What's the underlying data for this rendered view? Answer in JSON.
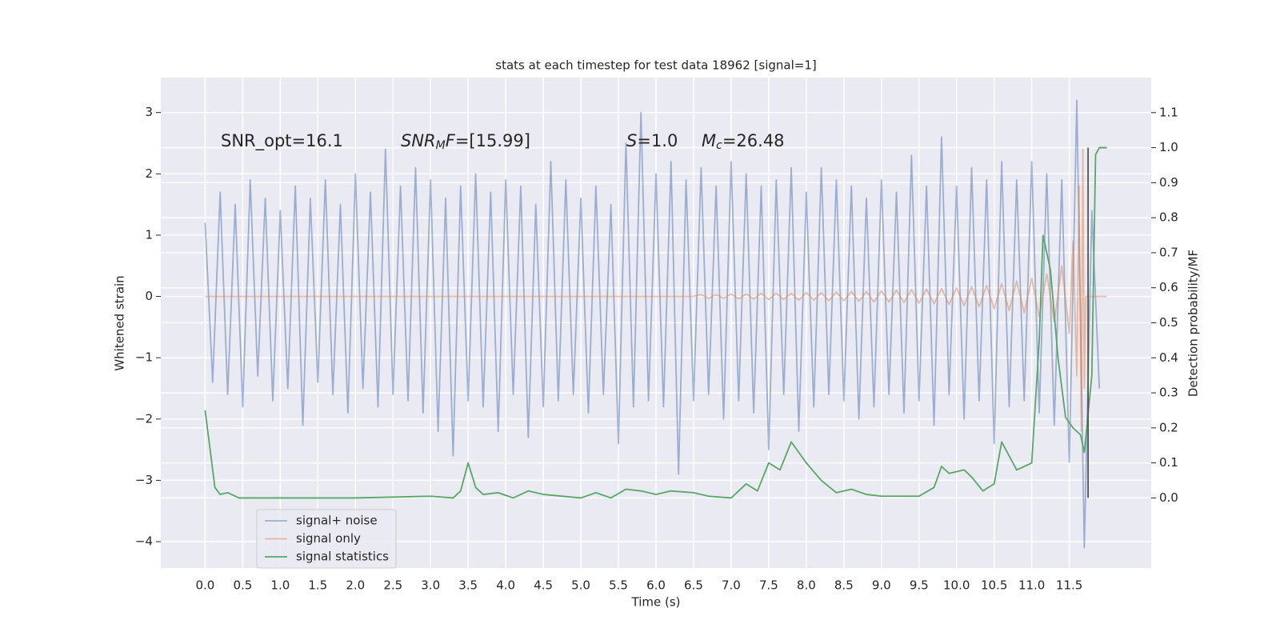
{
  "chart_data": {
    "type": "line",
    "title": "stats at each timestep for test data 18962 [signal=1]",
    "xlabel": "Time (s)",
    "ylabel": "Whitened strain",
    "y2label": "Detection probability/MF",
    "xlim": [
      -0.59,
      12.59
    ],
    "ylim": [
      -4.43,
      3.57
    ],
    "y2lim": [
      -0.2,
      1.2
    ],
    "grid": true,
    "legend": "lower left",
    "xticks": [
      {
        "value": 0,
        "label": "0.0"
      },
      0.5,
      {
        "value": 1,
        "label": "1.0"
      },
      1.5,
      {
        "value": 2,
        "label": "2.0"
      },
      2.5,
      {
        "value": 3,
        "label": "3.0"
      },
      3.5,
      {
        "value": 4,
        "label": "4.0"
      },
      4.5,
      {
        "value": 5,
        "label": "5.0"
      },
      5.5,
      {
        "value": 6,
        "label": "6.0"
      },
      6.5,
      {
        "value": 7,
        "label": "7.0"
      },
      7.5,
      {
        "value": 8,
        "label": "8.0"
      },
      8.5,
      {
        "value": 9,
        "label": "9.0"
      },
      9.5,
      {
        "value": 10,
        "label": "10.0"
      },
      10.5,
      {
        "value": 11,
        "label": "11.0"
      },
      11.5
    ],
    "yticks": [
      {
        "value": -4,
        "label": "−4"
      },
      {
        "value": -3,
        "label": "−3"
      },
      {
        "value": -2,
        "label": "−2"
      },
      {
        "value": -1,
        "label": "−1"
      },
      0,
      1,
      2,
      3
    ],
    "y2ticks": [
      {
        "value": 0,
        "label": "0.0"
      },
      0.1,
      0.2,
      0.3,
      0.4,
      0.5,
      0.6,
      0.7,
      0.8,
      0.9,
      {
        "value": 1,
        "label": "1.0"
      },
      1.1
    ],
    "annotations": [
      [
        {
          "text": "SNR_opt=16.1",
          "style": "normal"
        }
      ],
      [
        {
          "text": "SNR",
          "style": "italic"
        },
        {
          "text": "M",
          "style": "italic-sub"
        },
        {
          "text": "F",
          "style": "italic"
        },
        {
          "text": "=[15.99]",
          "style": "normal"
        }
      ],
      [
        {
          "text": "S",
          "style": "italic"
        },
        {
          "text": "=1.0",
          "style": "normal"
        }
      ],
      [
        {
          "text": "M",
          "style": "italic"
        },
        {
          "text": "c",
          "style": "italic-sub"
        },
        {
          "text": "=26.48",
          "style": "normal"
        }
      ]
    ],
    "series": [
      {
        "name": "signal+ noise",
        "color": "#4c72b0",
        "opacity": 0.5,
        "x": [
          0.0,
          0.1,
          0.2,
          0.3,
          0.4,
          0.5,
          0.6,
          0.7,
          0.8,
          0.9,
          1.0,
          1.1,
          1.2,
          1.3,
          1.4,
          1.5,
          1.6,
          1.7,
          1.8,
          1.9,
          2.0,
          2.1,
          2.2,
          2.3,
          2.4,
          2.5,
          2.6,
          2.7,
          2.8,
          2.9,
          3.0,
          3.1,
          3.2,
          3.3,
          3.4,
          3.5,
          3.6,
          3.7,
          3.8,
          3.9,
          4.0,
          4.1,
          4.2,
          4.3,
          4.4,
          4.5,
          4.6,
          4.7,
          4.8,
          4.9,
          5.0,
          5.1,
          5.2,
          5.3,
          5.4,
          5.5,
          5.6,
          5.7,
          5.8,
          5.9,
          6.0,
          6.1,
          6.2,
          6.3,
          6.4,
          6.5,
          6.6,
          6.7,
          6.8,
          6.9,
          7.0,
          7.1,
          7.2,
          7.3,
          7.4,
          7.5,
          7.6,
          7.7,
          7.8,
          7.9,
          8.0,
          8.1,
          8.2,
          8.3,
          8.4,
          8.5,
          8.6,
          8.7,
          8.8,
          8.9,
          9.0,
          9.1,
          9.2,
          9.3,
          9.4,
          9.5,
          9.6,
          9.7,
          9.8,
          9.9,
          10.0,
          10.1,
          10.2,
          10.3,
          10.4,
          10.5,
          10.6,
          10.7,
          10.8,
          10.9,
          11.0,
          11.1,
          11.2,
          11.3,
          11.4,
          11.5,
          11.6,
          11.7,
          11.8,
          11.9
        ],
        "values": [
          1.2,
          -1.4,
          1.7,
          -1.6,
          1.5,
          -1.8,
          1.9,
          -1.3,
          1.6,
          -1.7,
          1.4,
          -1.5,
          1.8,
          -2.1,
          1.6,
          -1.4,
          1.9,
          -1.6,
          1.5,
          -1.9,
          2.0,
          -1.5,
          1.7,
          -1.8,
          2.4,
          -1.6,
          1.8,
          -1.7,
          2.1,
          -1.9,
          1.9,
          -2.2,
          1.6,
          -2.6,
          1.8,
          -1.7,
          2.0,
          -1.8,
          1.7,
          -2.2,
          1.9,
          -1.6,
          1.8,
          -2.3,
          1.5,
          -1.8,
          2.2,
          -1.7,
          1.9,
          -1.6,
          1.6,
          -1.9,
          1.8,
          -1.6,
          1.5,
          -2.4,
          2.5,
          -1.8,
          3.0,
          -1.7,
          2.0,
          -1.8,
          2.2,
          -2.9,
          1.9,
          -1.7,
          2.1,
          -1.6,
          1.8,
          -2.0,
          2.2,
          -1.7,
          2.0,
          -1.9,
          1.8,
          -2.5,
          1.9,
          -1.6,
          2.1,
          -2.2,
          1.7,
          -1.8,
          2.1,
          -1.6,
          1.9,
          -1.7,
          1.8,
          -2.0,
          1.6,
          -1.8,
          1.9,
          -1.6,
          1.7,
          -1.9,
          2.3,
          -1.7,
          1.8,
          -2.1,
          2.6,
          -1.6,
          1.8,
          -2.0,
          2.1,
          -1.7,
          1.9,
          -2.4,
          2.2,
          -1.8,
          1.9,
          -1.7,
          2.2,
          -1.9,
          2.0,
          -2.1,
          1.9,
          -2.7,
          3.2,
          -4.1,
          1.4,
          -1.5
        ]
      },
      {
        "name": "signal only",
        "color": "#dd8452",
        "opacity": 0.5,
        "x": [
          0.0,
          6.5,
          6.6,
          6.7,
          6.8,
          6.9,
          7.0,
          7.1,
          7.2,
          7.3,
          7.4,
          7.5,
          7.6,
          7.7,
          7.8,
          7.9,
          8.0,
          8.1,
          8.2,
          8.3,
          8.4,
          8.5,
          8.6,
          8.7,
          8.8,
          8.9,
          9.0,
          9.1,
          9.2,
          9.3,
          9.4,
          9.5,
          9.6,
          9.7,
          9.8,
          9.9,
          10.0,
          10.1,
          10.2,
          10.3,
          10.4,
          10.5,
          10.6,
          10.7,
          10.8,
          10.9,
          11.0,
          11.1,
          11.2,
          11.3,
          11.4,
          11.5,
          11.55,
          11.6,
          11.63,
          11.66,
          11.68,
          11.7,
          11.72,
          12.0
        ],
        "values": [
          0,
          0,
          0.03,
          -0.03,
          0.03,
          -0.03,
          0.04,
          -0.04,
          0.04,
          -0.04,
          0.05,
          -0.05,
          0.05,
          -0.05,
          0.05,
          -0.06,
          0.06,
          -0.06,
          0.06,
          -0.07,
          0.07,
          -0.07,
          0.08,
          -0.08,
          0.08,
          -0.09,
          0.09,
          -0.09,
          0.1,
          -0.1,
          0.11,
          -0.11,
          0.12,
          -0.12,
          0.13,
          -0.13,
          0.14,
          -0.15,
          0.16,
          -0.17,
          0.18,
          -0.2,
          0.21,
          -0.23,
          0.25,
          -0.27,
          0.3,
          -0.33,
          0.37,
          -0.42,
          0.5,
          -0.6,
          0.9,
          -1.3,
          1.8,
          -2.2,
          2.4,
          -1.5,
          0,
          0
        ]
      },
      {
        "name": "signal statistics",
        "color": "#55a868",
        "opacity": 1,
        "axis": "y2",
        "x": [
          0.0,
          0.13,
          0.2,
          0.3,
          0.45,
          0.7,
          2.0,
          3.0,
          3.3,
          3.4,
          3.5,
          3.6,
          3.7,
          3.9,
          4.1,
          4.3,
          4.5,
          5.0,
          5.2,
          5.4,
          5.6,
          5.8,
          6.0,
          6.2,
          6.5,
          6.7,
          7.0,
          7.2,
          7.35,
          7.5,
          7.65,
          7.8,
          7.9,
          8.0,
          8.2,
          8.4,
          8.6,
          8.8,
          9.0,
          9.5,
          9.7,
          9.8,
          9.9,
          10.1,
          10.2,
          10.35,
          10.5,
          10.6,
          10.7,
          10.8,
          11.0,
          11.1,
          11.15,
          11.25,
          11.35,
          11.45,
          11.55,
          11.65,
          11.7,
          11.8,
          11.85,
          11.9,
          12.0
        ],
        "values": [
          0.25,
          0.03,
          0.01,
          0.015,
          0.0,
          0.0,
          0.0,
          0.005,
          0.0,
          0.02,
          0.1,
          0.03,
          0.01,
          0.015,
          0.0,
          0.02,
          0.01,
          0.0,
          0.015,
          0.0,
          0.025,
          0.02,
          0.01,
          0.02,
          0.015,
          0.005,
          0.0,
          0.04,
          0.02,
          0.1,
          0.08,
          0.16,
          0.13,
          0.1,
          0.05,
          0.015,
          0.025,
          0.01,
          0.005,
          0.005,
          0.03,
          0.09,
          0.07,
          0.08,
          0.06,
          0.02,
          0.04,
          0.16,
          0.12,
          0.08,
          0.1,
          0.45,
          0.75,
          0.65,
          0.4,
          0.23,
          0.2,
          0.18,
          0.13,
          0.35,
          0.98,
          1.0,
          1.0
        ]
      }
    ],
    "vline": {
      "x": 11.75,
      "y": [
        0,
        1.0
      ],
      "axis": "y2",
      "color": "#555555"
    }
  }
}
